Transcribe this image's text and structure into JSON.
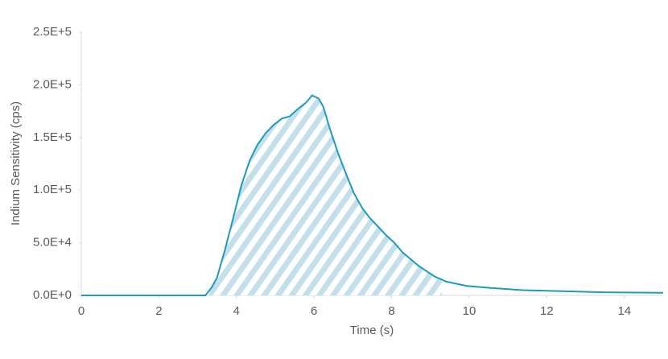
{
  "chart_data": {
    "type": "line",
    "x_label": "Time (s)",
    "y_label": "Indium Sensitivity (cps)",
    "x": [
      0,
      3.2,
      3.36,
      3.5,
      3.71,
      3.92,
      4.13,
      4.34,
      4.54,
      4.75,
      4.96,
      5.17,
      5.37,
      5.58,
      5.79,
      5.95,
      6.12,
      6.24,
      6.41,
      6.62,
      6.83,
      7.03,
      7.24,
      7.45,
      7.66,
      7.86,
      8.07,
      8.28,
      8.7,
      9.11,
      9.42,
      9.94,
      10.56,
      11.39,
      12.43,
      13.46,
      15
    ],
    "series": [
      {
        "color": "#1b9bbf",
        "values": [
          0,
          0,
          7600,
          17000,
          44000,
          74000,
          105000,
          128000,
          143000,
          154000,
          162000,
          168000,
          170000,
          177000,
          183000,
          190000,
          187000,
          179000,
          158000,
          135000,
          115000,
          97000,
          83000,
          73000,
          65000,
          57000,
          50000,
          41000,
          28000,
          18000,
          13000,
          9000,
          7000,
          5000,
          4000,
          3000,
          2500
        ]
      }
    ],
    "shade": {
      "xlim": [
        3.3,
        9.3
      ],
      "color": "#c3dfea"
    },
    "xlim": [
      0,
      15
    ],
    "xticks": [
      0,
      2,
      4,
      6,
      8,
      10,
      12,
      14
    ],
    "ylim": [
      0,
      250000
    ],
    "yticks": [
      {
        "value": 0,
        "label": "0.0E+0"
      },
      {
        "value": 50000,
        "label": "5.0E+4"
      },
      {
        "value": 100000,
        "label": "1.0E+5"
      },
      {
        "value": 150000,
        "label": "1.5E+5"
      },
      {
        "value": 200000,
        "label": "2.0E+5"
      },
      {
        "value": 250000,
        "label": "2.5E+5"
      }
    ]
  }
}
